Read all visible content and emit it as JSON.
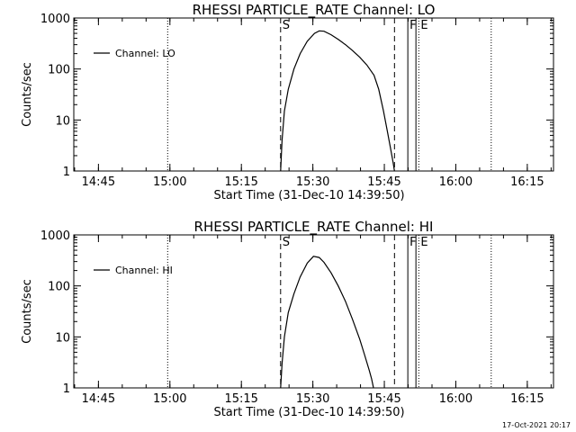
{
  "footer": {
    "timestamp": "17-Oct-2021 20:17"
  },
  "chart_data": [
    {
      "type": "line",
      "title": "RHESSI PARTICLE_RATE Channel: LO",
      "xlabel": "Start Time (31-Dec-10 14:39:50)",
      "ylabel": "Counts/sec",
      "y_scale": "log",
      "ylim": [
        1,
        1000
      ],
      "xlim": [
        "14:39:50",
        "16:20:30"
      ],
      "x_unit": "minutes after 14:39:50",
      "x_ticks": [
        {
          "label": "14:45",
          "min": 5.17
        },
        {
          "label": "15:00",
          "min": 20.17
        },
        {
          "label": "15:15",
          "min": 35.17
        },
        {
          "label": "15:30",
          "min": 50.17
        },
        {
          "label": "15:45",
          "min": 65.17
        },
        {
          "label": "16:00",
          "min": 80.17
        },
        {
          "label": "16:15",
          "min": 95.17
        }
      ],
      "y_ticks": [
        {
          "label": "1",
          "value": 1
        },
        {
          "label": "10",
          "value": 10
        },
        {
          "label": "100",
          "value": 100
        },
        {
          "label": "1000",
          "value": 1000
        }
      ],
      "legend": {
        "label": "Channel: LO",
        "placement": "top-left"
      },
      "markers": [
        {
          "label": "",
          "style": "dotted",
          "min": 19.7
        },
        {
          "label": "S",
          "style": "dashed",
          "min": 43.4
        },
        {
          "label": "",
          "style": "dashed",
          "min": 67.3
        },
        {
          "label": "F",
          "style": "solid",
          "min": 70.1
        },
        {
          "label": "",
          "style": "solid",
          "min": 71.8
        },
        {
          "label": "E",
          "style": "dotted",
          "min": 72.4
        },
        {
          "label": "",
          "style": "dotted",
          "min": 87.6
        }
      ],
      "series": [
        {
          "x": [
            43.4,
            43.7,
            44.2,
            45.0,
            46.2,
            47.5,
            49.0,
            50.5,
            51.5,
            52.5,
            54.0,
            55.5,
            57.0,
            58.5,
            60.0,
            61.5,
            63.0,
            64.0,
            65.0,
            65.8,
            66.4,
            67.0,
            67.3
          ],
          "y": [
            1,
            4,
            15,
            40,
            100,
            200,
            350,
            500,
            560,
            550,
            470,
            380,
            300,
            230,
            170,
            120,
            75,
            40,
            15,
            6,
            3,
            1.5,
            1
          ]
        }
      ]
    },
    {
      "type": "line",
      "title": "RHESSI PARTICLE_RATE Channel: HI",
      "xlabel": "Start Time (31-Dec-10 14:39:50)",
      "ylabel": "Counts/sec",
      "y_scale": "log",
      "ylim": [
        1,
        1000
      ],
      "xlim": [
        "14:39:50",
        "16:20:30"
      ],
      "x_unit": "minutes after 14:39:50",
      "x_ticks": [
        {
          "label": "14:45",
          "min": 5.17
        },
        {
          "label": "15:00",
          "min": 20.17
        },
        {
          "label": "15:15",
          "min": 35.17
        },
        {
          "label": "15:30",
          "min": 50.17
        },
        {
          "label": "15:45",
          "min": 65.17
        },
        {
          "label": "16:00",
          "min": 80.17
        },
        {
          "label": "16:15",
          "min": 95.17
        }
      ],
      "y_ticks": [
        {
          "label": "1",
          "value": 1
        },
        {
          "label": "10",
          "value": 10
        },
        {
          "label": "100",
          "value": 100
        },
        {
          "label": "1000",
          "value": 1000
        }
      ],
      "legend": {
        "label": "Channel: HI",
        "placement": "top-left"
      },
      "markers": [
        {
          "label": "",
          "style": "dotted",
          "min": 19.7
        },
        {
          "label": "S",
          "style": "dashed",
          "min": 43.4
        },
        {
          "label": "",
          "style": "dashed",
          "min": 67.3
        },
        {
          "label": "F",
          "style": "solid",
          "min": 70.1
        },
        {
          "label": "",
          "style": "solid",
          "min": 71.8
        },
        {
          "label": "E",
          "style": "dotted",
          "min": 72.4
        },
        {
          "label": "",
          "style": "dotted",
          "min": 87.6
        }
      ],
      "series": [
        {
          "x": [
            43.4,
            43.7,
            44.2,
            45.0,
            46.2,
            47.5,
            49.0,
            50.3,
            51.5,
            52.5,
            54.0,
            55.5,
            57.0,
            58.5,
            60.0,
            61.0,
            62.0,
            62.5,
            62.9
          ],
          "y": [
            1,
            3,
            10,
            30,
            70,
            150,
            280,
            380,
            360,
            290,
            180,
            100,
            50,
            22,
            9,
            4.5,
            2.2,
            1.5,
            1
          ]
        }
      ]
    }
  ]
}
